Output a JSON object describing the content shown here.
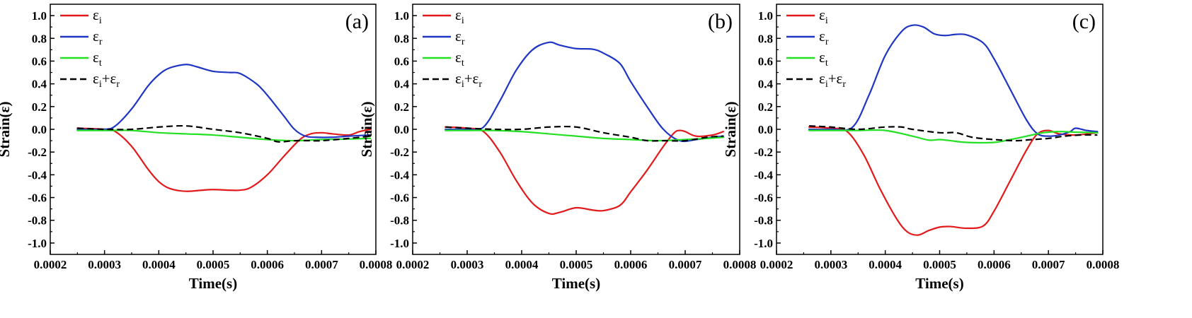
{
  "chart_data": [
    {
      "type": "line",
      "panel_label": "(a)",
      "xlabel": "Time(s)",
      "ylabel": "Strain(ε)",
      "xlim": [
        0.0002,
        0.0008
      ],
      "ylim": [
        -1.1,
        1.1
      ],
      "xticks": [
        "0.0002",
        "0.0003",
        "0.0004",
        "0.0005",
        "0.0006",
        "0.0007",
        "0.0008"
      ],
      "yticks": [
        "-1.0",
        "-0.8",
        "-0.6",
        "-0.4",
        "-0.2",
        "0.0",
        "0.2",
        "0.4",
        "0.6",
        "0.8",
        "1.0"
      ],
      "legend_position": "top-left",
      "series": [
        {
          "name": "εi",
          "base": "ε",
          "sub": "i",
          "sup_base": "",
          "sup_sub": "",
          "color": "#e31a1c",
          "dash": false,
          "points": [
            [
              0.00025,
              0.01
            ],
            [
              0.0003,
              0.0
            ],
            [
              0.00032,
              -0.02
            ],
            [
              0.00035,
              -0.15
            ],
            [
              0.00038,
              -0.35
            ],
            [
              0.0004,
              -0.46
            ],
            [
              0.00042,
              -0.52
            ],
            [
              0.00045,
              -0.545
            ],
            [
              0.00048,
              -0.535
            ],
            [
              0.0005,
              -0.53
            ],
            [
              0.00053,
              -0.535
            ],
            [
              0.00055,
              -0.535
            ],
            [
              0.00057,
              -0.51
            ],
            [
              0.0006,
              -0.4
            ],
            [
              0.00063,
              -0.24
            ],
            [
              0.00066,
              -0.09
            ],
            [
              0.00068,
              -0.04
            ],
            [
              0.0007,
              -0.03
            ],
            [
              0.00072,
              -0.04
            ],
            [
              0.00075,
              -0.05
            ],
            [
              0.00077,
              -0.02
            ],
            [
              0.00079,
              0.0
            ]
          ]
        },
        {
          "name": "εr",
          "base": "ε",
          "sub": "r",
          "sup_base": "",
          "sup_sub": "",
          "color": "#1f35c4",
          "dash": false,
          "points": [
            [
              0.00025,
              0.0
            ],
            [
              0.0003,
              0.0
            ],
            [
              0.00032,
              0.03
            ],
            [
              0.00035,
              0.18
            ],
            [
              0.00038,
              0.38
            ],
            [
              0.0004,
              0.48
            ],
            [
              0.00042,
              0.54
            ],
            [
              0.00045,
              0.57
            ],
            [
              0.00047,
              0.55
            ],
            [
              0.0005,
              0.51
            ],
            [
              0.00053,
              0.5
            ],
            [
              0.00055,
              0.49
            ],
            [
              0.00058,
              0.4
            ],
            [
              0.0006,
              0.3
            ],
            [
              0.00063,
              0.12
            ],
            [
              0.00065,
              0.0
            ],
            [
              0.00067,
              -0.06
            ],
            [
              0.00069,
              -0.07
            ],
            [
              0.00072,
              -0.07
            ],
            [
              0.00075,
              -0.06
            ],
            [
              0.00079,
              -0.05
            ]
          ]
        },
        {
          "name": "εt",
          "base": "ε",
          "sub": "t",
          "sup_base": "",
          "sup_sub": "",
          "color": "#22e022",
          "dash": false,
          "points": [
            [
              0.00025,
              -0.01
            ],
            [
              0.0003,
              -0.01
            ],
            [
              0.00035,
              -0.01
            ],
            [
              0.0004,
              -0.03
            ],
            [
              0.00045,
              -0.04
            ],
            [
              0.0005,
              -0.05
            ],
            [
              0.00055,
              -0.07
            ],
            [
              0.0006,
              -0.09
            ],
            [
              0.00065,
              -0.1
            ],
            [
              0.0007,
              -0.09
            ],
            [
              0.00075,
              -0.085
            ],
            [
              0.00079,
              -0.08
            ]
          ]
        },
        {
          "name": "εi+εr",
          "base": "ε",
          "sub": "i",
          "sup_base": "+ε",
          "sup_sub": "r",
          "color": "#000000",
          "dash": true,
          "points": [
            [
              0.00025,
              0.01
            ],
            [
              0.0003,
              0.0
            ],
            [
              0.00035,
              0.0
            ],
            [
              0.0004,
              0.02
            ],
            [
              0.00045,
              0.03
            ],
            [
              0.0005,
              0.0
            ],
            [
              0.00055,
              -0.03
            ],
            [
              0.0006,
              -0.08
            ],
            [
              0.00062,
              -0.11
            ],
            [
              0.00065,
              -0.1
            ],
            [
              0.00068,
              -0.1
            ],
            [
              0.0007,
              -0.1
            ],
            [
              0.00075,
              -0.08
            ],
            [
              0.00079,
              -0.06
            ]
          ]
        }
      ]
    },
    {
      "type": "line",
      "panel_label": "(b)",
      "xlabel": "Time(s)",
      "ylabel": "Strain(ε)",
      "xlim": [
        0.0002,
        0.0008
      ],
      "ylim": [
        -1.1,
        1.1
      ],
      "xticks": [
        "0.0002",
        "0.0003",
        "0.0004",
        "0.0005",
        "0.0006",
        "0.0007",
        "0.0008"
      ],
      "yticks": [
        "-1.0",
        "-0.8",
        "-0.6",
        "-0.4",
        "-0.2",
        "0.0",
        "0.2",
        "0.4",
        "0.6",
        "0.8",
        "1.0"
      ],
      "legend_position": "top-left",
      "series": [
        {
          "name": "εi",
          "base": "ε",
          "sub": "i",
          "sup_base": "",
          "sup_sub": "",
          "color": "#e31a1c",
          "dash": false,
          "points": [
            [
              0.00026,
              0.02
            ],
            [
              0.0003,
              0.01
            ],
            [
              0.00033,
              -0.02
            ],
            [
              0.00036,
              -0.2
            ],
            [
              0.00039,
              -0.45
            ],
            [
              0.00042,
              -0.65
            ],
            [
              0.00045,
              -0.74
            ],
            [
              0.00047,
              -0.73
            ],
            [
              0.0005,
              -0.69
            ],
            [
              0.00053,
              -0.71
            ],
            [
              0.00055,
              -0.715
            ],
            [
              0.00058,
              -0.67
            ],
            [
              0.0006,
              -0.55
            ],
            [
              0.00063,
              -0.36
            ],
            [
              0.00066,
              -0.15
            ],
            [
              0.00068,
              -0.03
            ],
            [
              0.00069,
              -0.01
            ],
            [
              0.0007,
              -0.02
            ],
            [
              0.00072,
              -0.06
            ],
            [
              0.00075,
              -0.05
            ],
            [
              0.00077,
              -0.02
            ]
          ]
        },
        {
          "name": "εr",
          "base": "ε",
          "sub": "r",
          "sup_base": "",
          "sup_sub": "",
          "color": "#1f35c4",
          "dash": false,
          "points": [
            [
              0.00026,
              0.0
            ],
            [
              0.0003,
              0.0
            ],
            [
              0.00033,
              0.02
            ],
            [
              0.00036,
              0.25
            ],
            [
              0.00039,
              0.52
            ],
            [
              0.00042,
              0.7
            ],
            [
              0.00045,
              0.765
            ],
            [
              0.00047,
              0.74
            ],
            [
              0.0005,
              0.71
            ],
            [
              0.00053,
              0.705
            ],
            [
              0.00055,
              0.67
            ],
            [
              0.00058,
              0.58
            ],
            [
              0.0006,
              0.42
            ],
            [
              0.00063,
              0.2
            ],
            [
              0.00066,
              0.0
            ],
            [
              0.00069,
              -0.1
            ],
            [
              0.00072,
              -0.09
            ],
            [
              0.00075,
              -0.07
            ],
            [
              0.00077,
              -0.06
            ]
          ]
        },
        {
          "name": "εt",
          "base": "ε",
          "sub": "t",
          "sup_base": "",
          "sup_sub": "",
          "color": "#22e022",
          "dash": false,
          "points": [
            [
              0.00026,
              -0.01
            ],
            [
              0.0003,
              -0.01
            ],
            [
              0.00035,
              -0.01
            ],
            [
              0.0004,
              -0.02
            ],
            [
              0.00045,
              -0.04
            ],
            [
              0.0005,
              -0.06
            ],
            [
              0.00055,
              -0.08
            ],
            [
              0.0006,
              -0.09
            ],
            [
              0.00065,
              -0.1
            ],
            [
              0.0007,
              -0.09
            ],
            [
              0.00074,
              -0.08
            ],
            [
              0.00077,
              -0.07
            ]
          ]
        },
        {
          "name": "εi+εr",
          "base": "ε",
          "sub": "i",
          "sup_base": "+ε",
          "sup_sub": "r",
          "color": "#000000",
          "dash": true,
          "points": [
            [
              0.00026,
              0.02
            ],
            [
              0.0003,
              0.01
            ],
            [
              0.00035,
              0.0
            ],
            [
              0.0004,
              0.0
            ],
            [
              0.00045,
              0.02
            ],
            [
              0.0005,
              0.02
            ],
            [
              0.00055,
              -0.03
            ],
            [
              0.0006,
              -0.07
            ],
            [
              0.00063,
              -0.1
            ],
            [
              0.00066,
              -0.1
            ],
            [
              0.0007,
              -0.1
            ],
            [
              0.00074,
              -0.07
            ],
            [
              0.00077,
              -0.06
            ]
          ]
        }
      ]
    },
    {
      "type": "line",
      "panel_label": "(c)",
      "xlabel": "Time(s)",
      "ylabel": "Strain(ε)",
      "xlim": [
        0.0002,
        0.0008
      ],
      "ylim": [
        -1.1,
        1.1
      ],
      "xticks": [
        "0.0002",
        "0.0003",
        "0.0004",
        "0.0005",
        "0.0006",
        "0.0007",
        "0.0008"
      ],
      "yticks": [
        "-1.0",
        "-0.8",
        "-0.6",
        "-0.4",
        "-0.2",
        "0.0",
        "0.2",
        "0.4",
        "0.6",
        "0.8",
        "1.0"
      ],
      "legend_position": "top-left",
      "series": [
        {
          "name": "εi",
          "base": "ε",
          "sub": "i",
          "sup_base": "",
          "sup_sub": "",
          "color": "#e31a1c",
          "dash": false,
          "points": [
            [
              0.00026,
              0.02
            ],
            [
              0.0003,
              0.01
            ],
            [
              0.00033,
              -0.02
            ],
            [
              0.00036,
              -0.22
            ],
            [
              0.00039,
              -0.52
            ],
            [
              0.00042,
              -0.78
            ],
            [
              0.00044,
              -0.9
            ],
            [
              0.00046,
              -0.93
            ],
            [
              0.00048,
              -0.89
            ],
            [
              0.0005,
              -0.86
            ],
            [
              0.00052,
              -0.855
            ],
            [
              0.00055,
              -0.87
            ],
            [
              0.00058,
              -0.85
            ],
            [
              0.0006,
              -0.72
            ],
            [
              0.00063,
              -0.45
            ],
            [
              0.00066,
              -0.18
            ],
            [
              0.00068,
              -0.04
            ],
            [
              0.0007,
              -0.01
            ],
            [
              0.00072,
              -0.04
            ],
            [
              0.00075,
              -0.05
            ],
            [
              0.00079,
              -0.03
            ]
          ]
        },
        {
          "name": "εr",
          "base": "ε",
          "sub": "r",
          "sup_base": "",
          "sup_sub": "",
          "color": "#1f35c4",
          "dash": false,
          "points": [
            [
              0.00026,
              0.0
            ],
            [
              0.0003,
              0.0
            ],
            [
              0.00034,
              0.02
            ],
            [
              0.00037,
              0.3
            ],
            [
              0.0004,
              0.65
            ],
            [
              0.00043,
              0.86
            ],
            [
              0.00045,
              0.915
            ],
            [
              0.00047,
              0.9
            ],
            [
              0.00049,
              0.84
            ],
            [
              0.00051,
              0.825
            ],
            [
              0.00053,
              0.835
            ],
            [
              0.00055,
              0.83
            ],
            [
              0.00058,
              0.76
            ],
            [
              0.0006,
              0.62
            ],
            [
              0.00063,
              0.35
            ],
            [
              0.00066,
              0.08
            ],
            [
              0.00068,
              -0.04
            ],
            [
              0.0007,
              -0.06
            ],
            [
              0.00072,
              -0.05
            ],
            [
              0.00074,
              -0.02
            ],
            [
              0.00075,
              0.01
            ],
            [
              0.00077,
              -0.01
            ],
            [
              0.00079,
              -0.02
            ]
          ]
        },
        {
          "name": "εt",
          "base": "ε",
          "sub": "t",
          "sup_base": "",
          "sup_sub": "",
          "color": "#22e022",
          "dash": false,
          "points": [
            [
              0.00026,
              -0.01
            ],
            [
              0.0003,
              -0.01
            ],
            [
              0.00035,
              -0.01
            ],
            [
              0.0004,
              -0.01
            ],
            [
              0.00045,
              -0.06
            ],
            [
              0.00048,
              -0.095
            ],
            [
              0.0005,
              -0.09
            ],
            [
              0.00052,
              -0.1
            ],
            [
              0.00055,
              -0.115
            ],
            [
              0.0006,
              -0.115
            ],
            [
              0.00063,
              -0.09
            ],
            [
              0.00066,
              -0.06
            ],
            [
              0.00069,
              -0.03
            ],
            [
              0.00072,
              -0.02
            ],
            [
              0.00075,
              -0.025
            ],
            [
              0.00079,
              -0.03
            ]
          ]
        },
        {
          "name": "εi+εr",
          "base": "ε",
          "sub": "i",
          "sup_base": "+ε",
          "sup_sub": "r",
          "color": "#000000",
          "dash": true,
          "points": [
            [
              0.00026,
              0.03
            ],
            [
              0.0003,
              0.02
            ],
            [
              0.00035,
              0.0
            ],
            [
              0.0004,
              0.02
            ],
            [
              0.00043,
              0.02
            ],
            [
              0.00045,
              0.0
            ],
            [
              0.0005,
              -0.03
            ],
            [
              0.00053,
              -0.03
            ],
            [
              0.00056,
              -0.07
            ],
            [
              0.0006,
              -0.09
            ],
            [
              0.00064,
              -0.1
            ],
            [
              0.00067,
              -0.09
            ],
            [
              0.0007,
              -0.08
            ],
            [
              0.00073,
              -0.06
            ],
            [
              0.00076,
              -0.05
            ],
            [
              0.00079,
              -0.05
            ]
          ]
        }
      ]
    }
  ]
}
